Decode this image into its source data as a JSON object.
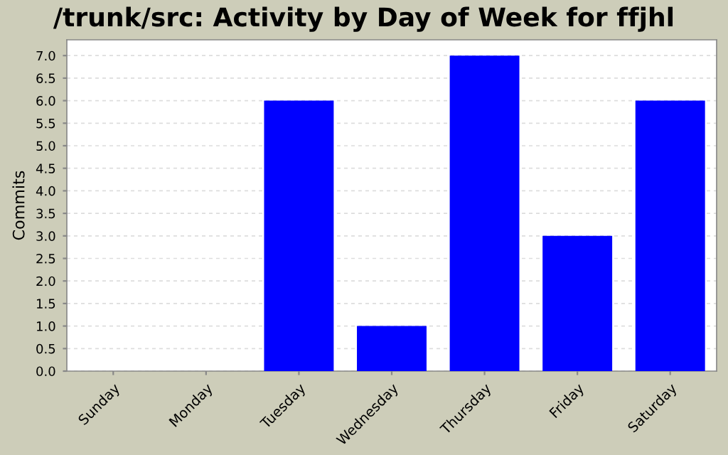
{
  "chart_data": {
    "type": "bar",
    "title": "/trunk/src: Activity by Day of Week for ffjhl",
    "ylabel": "Commits",
    "categories": [
      "Sunday",
      "Monday",
      "Tuesday",
      "Wednesday",
      "Thursday",
      "Friday",
      "Saturday"
    ],
    "values": [
      0,
      0,
      6,
      1,
      7,
      3,
      6
    ],
    "color": "#0000ff",
    "ylim": [
      0,
      7.35
    ],
    "yticks": [
      {
        "value": 0,
        "label": "0.0"
      },
      {
        "value": 0.5,
        "label": "0.5"
      },
      {
        "value": 1,
        "label": "1.0"
      },
      {
        "value": 1.5,
        "label": "1.5"
      },
      {
        "value": 2,
        "label": "2.0"
      },
      {
        "value": 2.5,
        "label": "2.5"
      },
      {
        "value": 3,
        "label": "3.0"
      },
      {
        "value": 3.5,
        "label": "3.5"
      },
      {
        "value": 4,
        "label": "4.0"
      },
      {
        "value": 4.5,
        "label": "4.5"
      },
      {
        "value": 5,
        "label": "5.0"
      },
      {
        "value": 5.5,
        "label": "5.5"
      },
      {
        "value": 6,
        "label": "6.0"
      },
      {
        "value": 6.5,
        "label": "6.5"
      },
      {
        "value": 7,
        "label": "7.0"
      }
    ],
    "grid": "y"
  }
}
